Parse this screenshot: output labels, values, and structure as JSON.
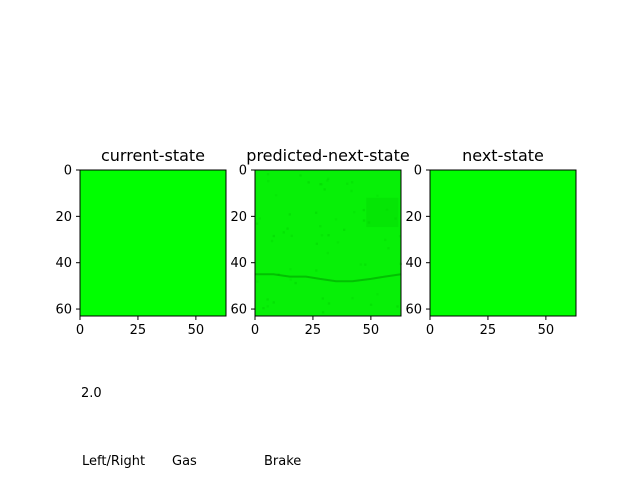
{
  "chart_data": [
    {
      "type": "heatmap",
      "title": "current-state",
      "xlim": [
        0,
        63
      ],
      "ylim": [
        63,
        0
      ],
      "xticks": [
        0,
        25,
        50
      ],
      "yticks": [
        0,
        20,
        40,
        60
      ],
      "fill_color": "#00ff00",
      "pattern": "uniform"
    },
    {
      "type": "heatmap",
      "title": "predicted-next-state",
      "xlim": [
        0,
        63
      ],
      "ylim": [
        63,
        0
      ],
      "xticks": [
        0,
        25,
        50
      ],
      "yticks": [
        0,
        20,
        40,
        60
      ],
      "fill_color": "#07f007",
      "pattern": "noisy-with-dark-band"
    },
    {
      "type": "heatmap",
      "title": "next-state",
      "xlim": [
        0,
        63
      ],
      "ylim": [
        63,
        0
      ],
      "xticks": [
        0,
        25,
        50
      ],
      "yticks": [
        0,
        20,
        40,
        60
      ],
      "fill_color": "#00ff00",
      "pattern": "uniform"
    }
  ],
  "readout": {
    "value": "2.0",
    "left_right_label": "Left/Right",
    "gas_label": "Gas",
    "brake_label": "Brake"
  }
}
